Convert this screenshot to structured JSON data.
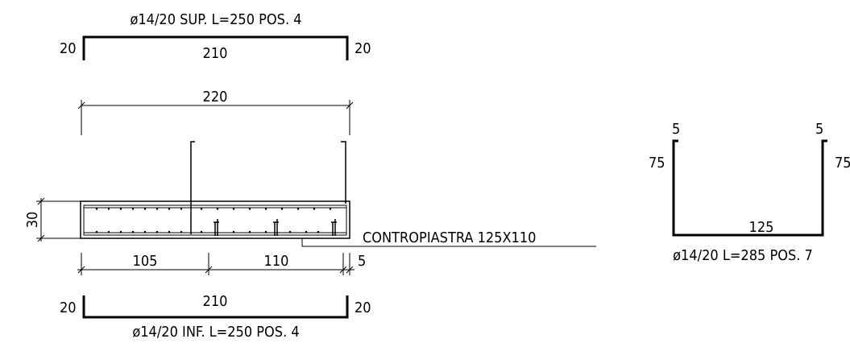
{
  "top_bar": {
    "label": "ø14/20 SUP. L=250 POS. 4",
    "left_leg": "20",
    "span": "210",
    "right_leg": "20"
  },
  "section": {
    "overall_width": "220",
    "thickness": "30",
    "dim_left": "105",
    "dim_middle": "110",
    "dim_right": "5",
    "plate_label": "CONTROPIASTRA 125X110"
  },
  "bottom_bar": {
    "left_leg": "20",
    "span": "210",
    "right_leg": "20",
    "label": "ø14/20 INF. L=250 POS. 4"
  },
  "stirrup": {
    "hook_left": "5",
    "hook_right": "5",
    "leg_left": "75",
    "leg_right": "75",
    "base": "125",
    "label": "ø14/20 L=285 POS. 7"
  }
}
